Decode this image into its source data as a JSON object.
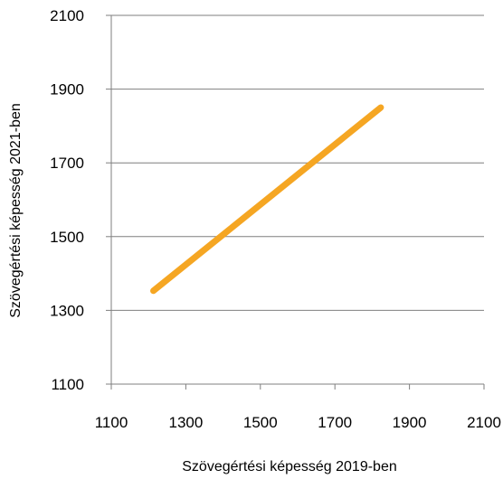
{
  "chart_data": {
    "type": "line",
    "title": "",
    "xlabel": "Szövegértési képesség 2019-ben",
    "ylabel": "Szövegértési képesség 2021-ben",
    "xlim": [
      1100,
      2100
    ],
    "ylim": [
      1100,
      2100
    ],
    "x_ticks": [
      1100,
      1300,
      1500,
      1700,
      1900,
      2100
    ],
    "y_ticks": [
      1100,
      1300,
      1500,
      1700,
      1900,
      2100
    ],
    "grid": "horizontal",
    "legend": "none",
    "series": [
      {
        "color": "#F5A623",
        "x": [
          1213,
          1823
        ],
        "y": [
          1353,
          1850
        ]
      }
    ]
  }
}
